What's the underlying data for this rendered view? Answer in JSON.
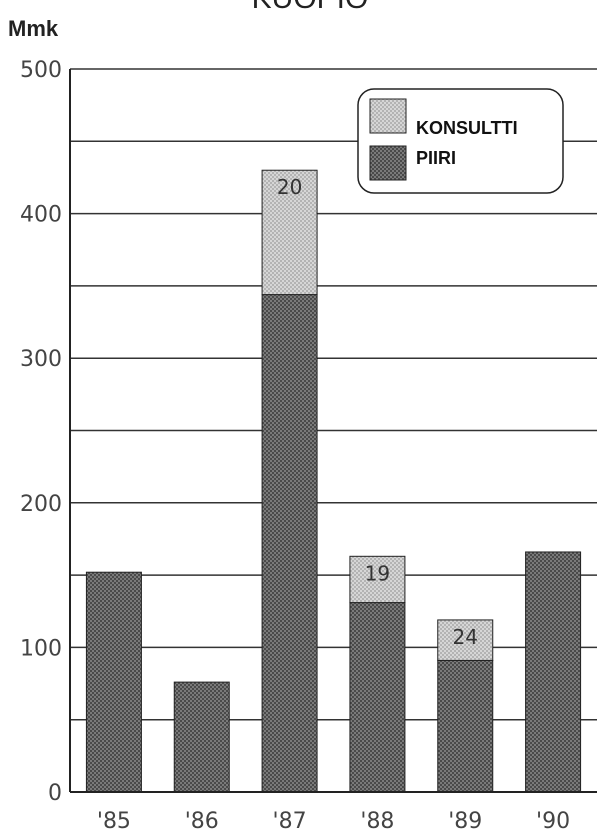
{
  "chart_data": {
    "type": "bar",
    "stacked": true,
    "title": "KUOPIO",
    "ylabel": "Mmk",
    "xlabel": "",
    "categories": [
      "'85",
      "'86",
      "'87",
      "'88",
      "'89",
      "'90"
    ],
    "ylim": [
      0,
      500
    ],
    "yticks": [
      0,
      100,
      200,
      300,
      400,
      500
    ],
    "gridlines": [
      0,
      50,
      100,
      150,
      200,
      250,
      300,
      350,
      400,
      450,
      500
    ],
    "grid": true,
    "series": [
      {
        "name": "PIIRI",
        "values": [
          152,
          76,
          344,
          131,
          91,
          166
        ],
        "color": "#6e6e6e"
      },
      {
        "name": "KONSULTTI",
        "values": [
          0,
          0,
          86,
          32,
          28,
          0
        ],
        "color": "#c9c9c9"
      }
    ],
    "data_labels": [
      "",
      "",
      "20",
      "19",
      "24",
      ""
    ],
    "legend": {
      "position": "top-right",
      "entries": [
        "KONSULTTI",
        "PIIRI"
      ]
    }
  }
}
